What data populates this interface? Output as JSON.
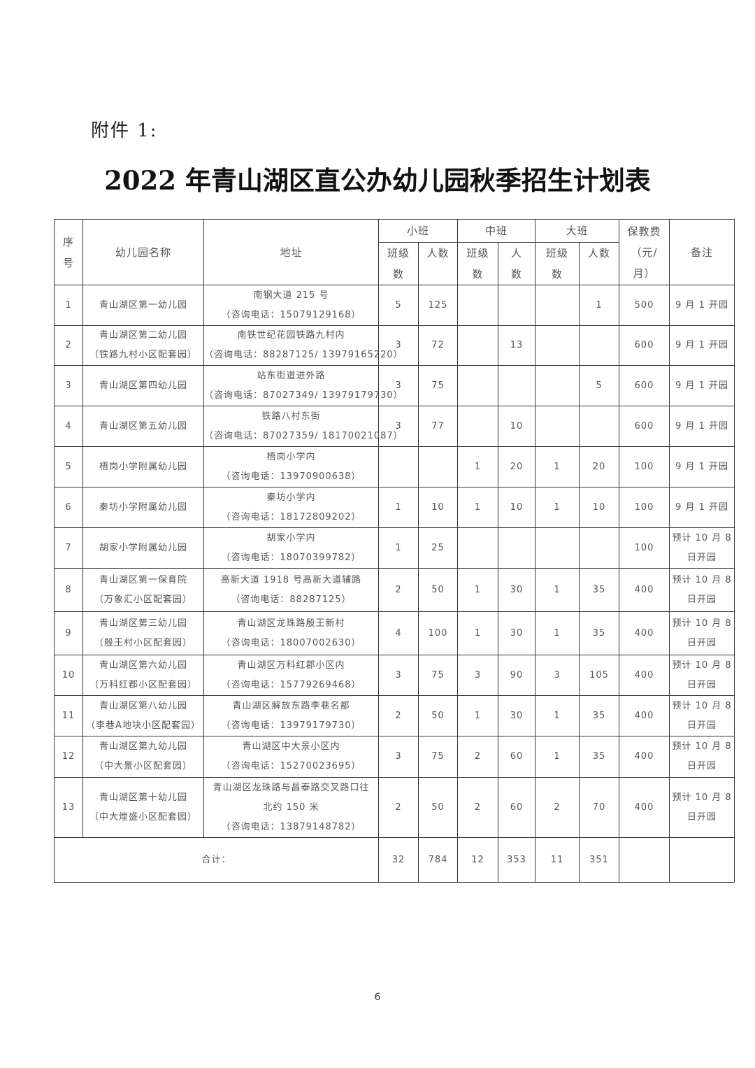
{
  "attachment_label": "附件 1:",
  "title": "2022 年青山湖区直公办幼儿园秋季招生计划表",
  "header": {
    "no": [
      "序",
      "号"
    ],
    "name": "幼儿园名称",
    "address": "地址",
    "small": "小班",
    "middle": "中班",
    "large": "大班",
    "fee": [
      "保教费",
      "（元/",
      "月）"
    ],
    "note": "备注",
    "cls_count": [
      "班级",
      "数"
    ],
    "people": "人数",
    "people_split": [
      "人",
      "数"
    ]
  },
  "rows": [
    {
      "no": "1",
      "name": [
        "青山湖区第一幼儿园"
      ],
      "address": [
        "南钢大道 215 号",
        "（咨询电话：15079129168）"
      ],
      "s_cls": "5",
      "s_num": "125",
      "m_cls": "",
      "m_num": "",
      "l_cls": "",
      "l_num": "1",
      "fee": "500",
      "note": [
        "9 月 1 开园"
      ]
    },
    {
      "no": "2",
      "name": [
        "青山湖区第二幼儿园",
        "（铁路九村小区配套园）"
      ],
      "address": [
        "南铁世纪花园铁路九村内",
        "（咨询电话：88287125/ 13979165220）"
      ],
      "s_cls": "3",
      "s_num": "72",
      "m_cls": "",
      "m_num": "13",
      "l_cls": "",
      "l_num": "",
      "fee": "600",
      "note": [
        "9 月 1 开园"
      ]
    },
    {
      "no": "3",
      "name": [
        "青山湖区第四幼儿园"
      ],
      "address": [
        "站东街道进外路",
        "（咨询电话：87027349/ 13979179730）"
      ],
      "s_cls": "3",
      "s_num": "75",
      "m_cls": "",
      "m_num": "",
      "l_cls": "",
      "l_num": "5",
      "fee": "600",
      "note": [
        "9 月 1 开园"
      ]
    },
    {
      "no": "4",
      "name": [
        "青山湖区第五幼儿园"
      ],
      "address": [
        "铁路八村东街",
        "（咨询电话：87027359/ 18170021087）"
      ],
      "s_cls": "3",
      "s_num": "77",
      "m_cls": "",
      "m_num": "10",
      "l_cls": "",
      "l_num": "",
      "fee": "600",
      "note": [
        "9 月 1 开园"
      ]
    },
    {
      "no": "5",
      "name": [
        "梧岗小学附属幼儿园"
      ],
      "address": [
        "梧岗小学内",
        "（咨询电话：13970900638）"
      ],
      "s_cls": "",
      "s_num": "",
      "m_cls": "1",
      "m_num": "20",
      "l_cls": "1",
      "l_num": "20",
      "fee": "100",
      "note": [
        "9 月 1 开园"
      ]
    },
    {
      "no": "6",
      "name": [
        "秦坊小学附属幼儿园"
      ],
      "address": [
        "秦坊小学内",
        "（咨询电话：18172809202）"
      ],
      "s_cls": "1",
      "s_num": "10",
      "m_cls": "1",
      "m_num": "10",
      "l_cls": "1",
      "l_num": "10",
      "fee": "100",
      "note": [
        "9 月 1 开园"
      ]
    },
    {
      "no": "7",
      "name": [
        "胡家小学附属幼儿园"
      ],
      "address": [
        "胡家小学内",
        "（咨询电话：18070399782）"
      ],
      "s_cls": "1",
      "s_num": "25",
      "m_cls": "",
      "m_num": "",
      "l_cls": "",
      "l_num": "",
      "fee": "100",
      "note": [
        "预计 10 月 8",
        "日开园"
      ]
    },
    {
      "no": "8",
      "name": [
        "青山湖区第一保育院",
        "（万象汇小区配套园）"
      ],
      "address": [
        "高新大道 1918 号高新大道辅路",
        "（咨询电话：88287125）"
      ],
      "s_cls": "2",
      "s_num": "50",
      "m_cls": "1",
      "m_num": "30",
      "l_cls": "1",
      "l_num": "35",
      "fee": "400",
      "note": [
        "预计 10 月 8",
        "日开园"
      ]
    },
    {
      "no": "9",
      "name": [
        "青山湖区第三幼儿园",
        "（殷王村小区配套园）"
      ],
      "address": [
        "青山湖区龙珠路殷王新村",
        "（咨询电话：18007002630）"
      ],
      "s_cls": "4",
      "s_num": "100",
      "m_cls": "1",
      "m_num": "30",
      "l_cls": "1",
      "l_num": "35",
      "fee": "400",
      "note": [
        "预计 10 月 8",
        "日开园"
      ]
    },
    {
      "no": "10",
      "name": [
        "青山湖区第六幼儿园",
        "（万科红郡小区配套园）"
      ],
      "address": [
        "青山湖区万科红郡小区内",
        "（咨询电话：15779269468）"
      ],
      "s_cls": "3",
      "s_num": "75",
      "m_cls": "3",
      "m_num": "90",
      "l_cls": "3",
      "l_num": "105",
      "fee": "400",
      "note": [
        "预计 10 月 8",
        "日开园"
      ]
    },
    {
      "no": "11",
      "name": [
        "青山湖区第八幼儿园",
        "（李巷A地块小区配套园）"
      ],
      "address": [
        "青山湖区解放东路李巷名都",
        "（咨询电话：13979179730）"
      ],
      "s_cls": "2",
      "s_num": "50",
      "m_cls": "1",
      "m_num": "30",
      "l_cls": "1",
      "l_num": "35",
      "fee": "400",
      "note": [
        "预计 10 月 8",
        "日开园"
      ]
    },
    {
      "no": "12",
      "name": [
        "青山湖区第九幼儿园",
        "（中大景小区配套园）"
      ],
      "address": [
        "青山湖区中大景小区内",
        "（咨询电话：15270023695）"
      ],
      "s_cls": "3",
      "s_num": "75",
      "m_cls": "2",
      "m_num": "60",
      "l_cls": "1",
      "l_num": "35",
      "fee": "400",
      "note": [
        "预计 10 月 8",
        "日开园"
      ]
    },
    {
      "no": "13",
      "name": [
        "青山湖区第十幼儿园",
        "（中大煌盛小区配套园）"
      ],
      "address": [
        "青山湖区龙珠路与昌泰路交叉路口往",
        "北约 150 米",
        "（咨询电话：13879148782）"
      ],
      "s_cls": "2",
      "s_num": "50",
      "m_cls": "2",
      "m_num": "60",
      "l_cls": "2",
      "l_num": "70",
      "fee": "400",
      "note": [
        "预计 10 月 8",
        "日开园"
      ]
    }
  ],
  "total": {
    "label": "合计：",
    "s_cls": "32",
    "s_num": "784",
    "m_cls": "12",
    "m_num": "353",
    "l_cls": "11",
    "l_num": "351",
    "fee": "",
    "note": ""
  },
  "page_number": "6"
}
